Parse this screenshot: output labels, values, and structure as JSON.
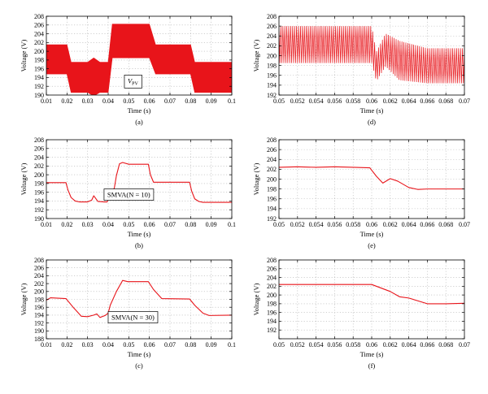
{
  "colors": {
    "signal": "#e8141a",
    "axis": "#000000",
    "grid": "#b3b3b3"
  },
  "chart_data": [
    {
      "id": "a",
      "type": "line",
      "caption": "(a)",
      "xlabel": "Time (s)",
      "ylabel": "Voltage (V)",
      "xlim": [
        0.01,
        0.1
      ],
      "ylim": [
        190,
        208
      ],
      "xticks": [
        0.01,
        0.02,
        0.03,
        0.04,
        0.05,
        0.06,
        0.07,
        0.08,
        0.09,
        0.1
      ],
      "xtick_labels": [
        "0.01",
        "0.02",
        "0.03",
        "0.04",
        "0.05",
        "0.06",
        "0.07",
        "0.08",
        "0.09",
        "0.1"
      ],
      "yticks": [
        190,
        192,
        194,
        196,
        198,
        200,
        202,
        204,
        206,
        208
      ],
      "ytick_labels": [
        "190",
        "192",
        "194",
        "196",
        "198",
        "200",
        "202",
        "204",
        "206",
        "208"
      ],
      "grid": true,
      "annotation": {
        "text": "V",
        "sub": "PV",
        "x": 0.052,
        "y": 193.3
      },
      "series": [
        {
          "style": "envelope",
          "x": [
            0.01,
            0.012,
            0.02,
            0.022,
            0.03,
            0.033,
            0.036,
            0.04,
            0.042,
            0.06,
            0.063,
            0.08,
            0.082,
            0.1
          ],
          "upper": [
            201.5,
            201.5,
            201.5,
            197.5,
            197.5,
            198.5,
            197.5,
            197.5,
            206.2,
            206.2,
            201.5,
            201.5,
            197.5,
            197.5
          ],
          "lower": [
            194.8,
            194.8,
            194.8,
            190.6,
            190.6,
            189.8,
            190.6,
            190.6,
            198.5,
            198.5,
            194.8,
            194.8,
            190.6,
            190.6
          ]
        }
      ]
    },
    {
      "id": "b",
      "type": "line",
      "caption": "(b)",
      "xlabel": "Time (s)",
      "ylabel": "Voltage (V)",
      "xlim": [
        0.01,
        0.1
      ],
      "ylim": [
        190,
        208
      ],
      "xticks": [
        0.01,
        0.02,
        0.03,
        0.04,
        0.05,
        0.06,
        0.07,
        0.08,
        0.09,
        0.1
      ],
      "xtick_labels": [
        "0.01",
        "0.02",
        "0.03",
        "0.04",
        "0.05",
        "0.06",
        "0.07",
        "0.08",
        "0.09",
        "0.1"
      ],
      "yticks": [
        190,
        192,
        194,
        196,
        198,
        200,
        202,
        204,
        206,
        208
      ],
      "ytick_labels": [
        "190",
        "192",
        "194",
        "196",
        "198",
        "200",
        "202",
        "204",
        "206",
        "208"
      ],
      "grid": true,
      "annotation": {
        "text": "SMVA(N = 10)",
        "x": 0.05,
        "y": 195.5
      },
      "series": [
        {
          "style": "line",
          "x": [
            0.01,
            0.0195,
            0.0205,
            0.022,
            0.024,
            0.026,
            0.03,
            0.032,
            0.033,
            0.035,
            0.038,
            0.0395,
            0.041,
            0.042,
            0.043,
            0.044,
            0.0455,
            0.047,
            0.05,
            0.0595,
            0.0605,
            0.062,
            0.07,
            0.0795,
            0.0805,
            0.082,
            0.084,
            0.086,
            0.1
          ],
          "y": [
            198.2,
            198.2,
            196.5,
            194.8,
            194.0,
            193.8,
            193.8,
            194.2,
            195.2,
            193.9,
            193.8,
            193.8,
            195.4,
            196.0,
            197.0,
            199.8,
            202.5,
            202.8,
            202.4,
            202.4,
            200.0,
            198.3,
            198.3,
            198.3,
            196.3,
            194.5,
            193.9,
            193.7,
            193.7
          ]
        }
      ]
    },
    {
      "id": "c",
      "type": "line",
      "caption": "(c)",
      "xlabel": "Time (s)",
      "ylabel": "Voltage (V)",
      "xlim": [
        0.01,
        0.1
      ],
      "ylim": [
        188,
        208
      ],
      "xticks": [
        0.01,
        0.02,
        0.03,
        0.04,
        0.05,
        0.06,
        0.07,
        0.08,
        0.09,
        0.1
      ],
      "xtick_labels": [
        "0.01",
        "0.02",
        "0.03",
        "0.04",
        "0.05",
        "0.06",
        "0.07",
        "0.08",
        "0.09",
        "0.1"
      ],
      "yticks": [
        188,
        190,
        192,
        194,
        196,
        198,
        200,
        202,
        204,
        206,
        208
      ],
      "ytick_labels": [
        "188",
        "190",
        "192",
        "194",
        "196",
        "198",
        "200",
        "202",
        "204",
        "206",
        "208"
      ],
      "grid": true,
      "annotation": {
        "text": "SMVA(N = 30)",
        "x": 0.052,
        "y": 193.5
      },
      "series": [
        {
          "style": "line",
          "x": [
            0.01,
            0.012,
            0.0195,
            0.023,
            0.027,
            0.03,
            0.033,
            0.0345,
            0.036,
            0.0385,
            0.04,
            0.041,
            0.044,
            0.047,
            0.0495,
            0.0595,
            0.062,
            0.066,
            0.0795,
            0.082,
            0.086,
            0.089,
            0.1
          ],
          "y": [
            197.8,
            198.4,
            198.2,
            196.0,
            193.7,
            193.6,
            194.0,
            194.3,
            193.4,
            193.9,
            194.5,
            196.5,
            200.0,
            202.8,
            202.5,
            202.5,
            200.5,
            198.2,
            198.1,
            196.5,
            194.5,
            193.9,
            194.0
          ]
        }
      ]
    },
    {
      "id": "d",
      "type": "line",
      "caption": "(d)",
      "xlabel": "Time (s)",
      "ylabel": "Voltage (V)",
      "xlim": [
        0.05,
        0.07
      ],
      "ylim": [
        192,
        208
      ],
      "xticks": [
        0.05,
        0.052,
        0.054,
        0.056,
        0.058,
        0.06,
        0.062,
        0.064,
        0.066,
        0.068,
        0.07
      ],
      "xtick_labels": [
        "0.05",
        "0.052",
        "0.054",
        "0.056",
        "0.058",
        "0.06",
        "0.062",
        "0.064",
        "0.066",
        "0.068",
        "0.07"
      ],
      "yticks": [
        192,
        194,
        196,
        198,
        200,
        202,
        204,
        206,
        208
      ],
      "ytick_labels": [
        "192",
        "194",
        "196",
        "198",
        "200",
        "202",
        "204",
        "206",
        "208"
      ],
      "grid": true,
      "series": [
        {
          "style": "oscillation",
          "cycles": 95,
          "x": [
            0.05,
            0.06,
            0.0605,
            0.0615,
            0.063,
            0.066,
            0.07
          ],
          "upper": [
            206.0,
            206.0,
            200.8,
            204.5,
            203.0,
            201.5,
            201.5
          ],
          "lower": [
            198.5,
            198.5,
            194.8,
            197.8,
            195.0,
            194.4,
            194.4
          ]
        }
      ]
    },
    {
      "id": "e",
      "type": "line",
      "caption": "(e)",
      "xlabel": "Time (s)",
      "ylabel": "Voltage (V)",
      "xlim": [
        0.05,
        0.07
      ],
      "ylim": [
        192,
        208
      ],
      "xticks": [
        0.05,
        0.052,
        0.054,
        0.056,
        0.058,
        0.06,
        0.062,
        0.064,
        0.066,
        0.068,
        0.07
      ],
      "xtick_labels": [
        "0.05",
        "0.052",
        "0.054",
        "0.056",
        "0.058",
        "0.06",
        "0.062",
        "0.064",
        "0.066",
        "0.068",
        "0.07"
      ],
      "yticks": [
        192,
        194,
        196,
        198,
        200,
        202,
        204,
        206,
        208
      ],
      "ytick_labels": [
        "192",
        "194",
        "196",
        "198",
        "200",
        "202",
        "204",
        "206",
        "208"
      ],
      "grid": true,
      "series": [
        {
          "style": "line",
          "x": [
            0.05,
            0.052,
            0.054,
            0.056,
            0.058,
            0.0598,
            0.0605,
            0.0612,
            0.062,
            0.0628,
            0.064,
            0.065,
            0.066,
            0.068,
            0.07
          ],
          "y": [
            202.4,
            202.5,
            202.4,
            202.5,
            202.4,
            202.3,
            200.6,
            199.2,
            200.1,
            199.6,
            198.3,
            197.9,
            198.0,
            198.0,
            198.0
          ]
        }
      ]
    },
    {
      "id": "f",
      "type": "line",
      "caption": "(f)",
      "xlabel": "Time (s)",
      "ylabel": "Voltage (V)",
      "xlim": [
        0.05,
        0.07
      ],
      "ylim": [
        190,
        208
      ],
      "xticks": [
        0.05,
        0.052,
        0.054,
        0.056,
        0.058,
        0.06,
        0.062,
        0.064,
        0.066,
        0.068,
        0.07
      ],
      "xtick_labels": [
        "0.05",
        "0.052",
        "0.054",
        "0.056",
        "0.058",
        "0.06",
        "0.062",
        "0.064",
        "0.066",
        "0.068",
        "0.07"
      ],
      "yticks": [
        190,
        192,
        194,
        196,
        198,
        200,
        202,
        204,
        206,
        208
      ],
      "ytick_labels": [
        "",
        "192",
        "194",
        "196",
        "198",
        "200",
        "202",
        "204",
        "206",
        "208"
      ],
      "grid": true,
      "series": [
        {
          "style": "line",
          "x": [
            0.05,
            0.06,
            0.062,
            0.063,
            0.064,
            0.066,
            0.068,
            0.07
          ],
          "y": [
            202.4,
            202.4,
            200.8,
            199.6,
            199.3,
            198.0,
            198.0,
            198.1
          ]
        }
      ]
    }
  ]
}
